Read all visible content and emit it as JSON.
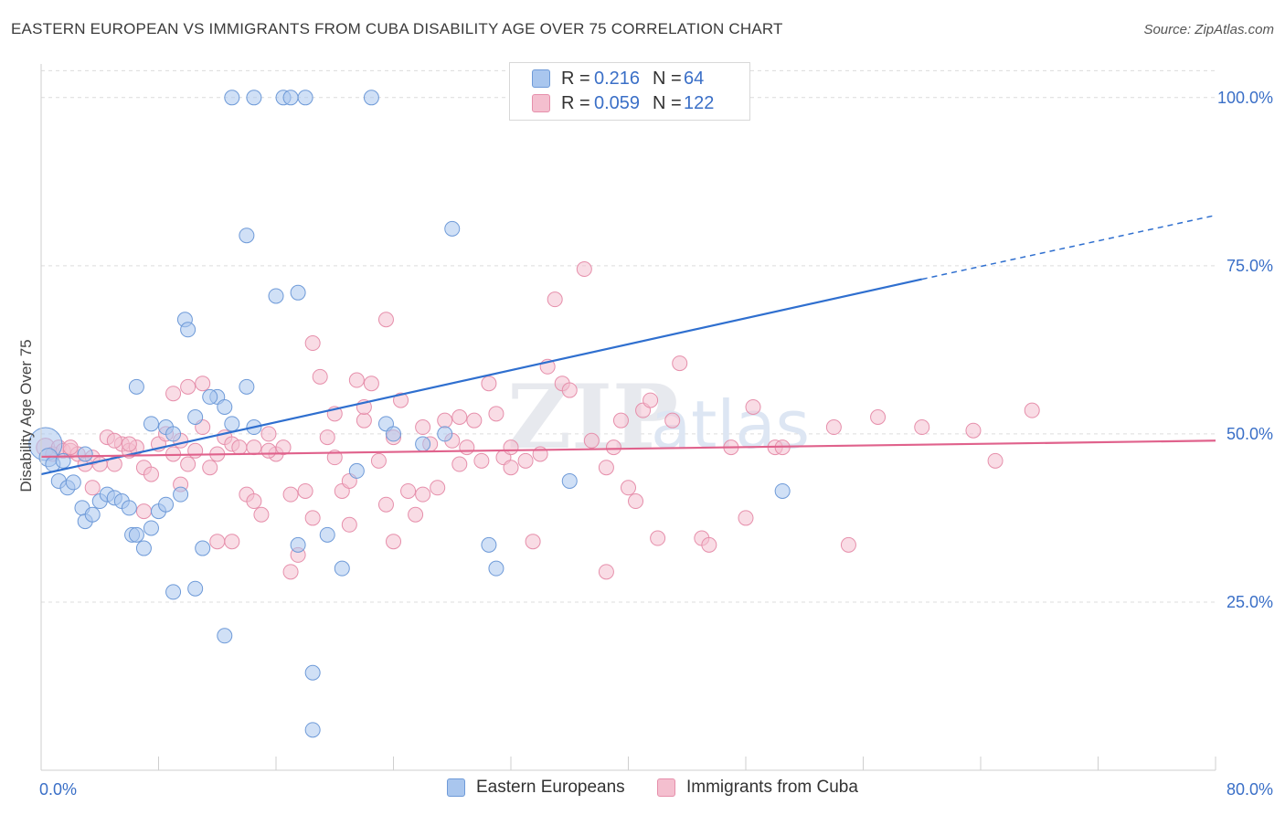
{
  "title": "EASTERN EUROPEAN VS IMMIGRANTS FROM CUBA DISABILITY AGE OVER 75 CORRELATION CHART",
  "source": "Source: ZipAtlas.com",
  "watermark": {
    "zip": "ZIP",
    "atlas": "atlas"
  },
  "colors": {
    "blue_fill": "#a9c6ee",
    "blue_stroke": "#6e9ad8",
    "blue_line": "#2f6fcf",
    "pink_fill": "#f4bfcf",
    "pink_stroke": "#e68fab",
    "pink_line": "#e0628c",
    "axis_label": "#3a6fc7",
    "grid": "#dcdcdc"
  },
  "legend": {
    "rows": [
      {
        "r_label": "R =",
        "r_value": "0.216",
        "n_label": "N =",
        "n_value": "64"
      },
      {
        "r_label": "R =",
        "r_value": "0.059",
        "n_label": "N =",
        "n_value": "122"
      }
    ]
  },
  "bottom_legend": [
    "Eastern Europeans",
    "Immigrants from Cuba"
  ],
  "chart_data": {
    "type": "scatter",
    "title": "EASTERN EUROPEAN VS IMMIGRANTS FROM CUBA DISABILITY AGE OVER 75 CORRELATION CHART",
    "xlabel": "",
    "ylabel": "Disability Age Over 75",
    "xlim": [
      0,
      80
    ],
    "ylim": [
      0,
      105
    ],
    "x_tick_labels": [
      "0.0%",
      "80.0%"
    ],
    "y_ticks": [
      25,
      50,
      75,
      100
    ],
    "y_tick_labels": [
      "25.0%",
      "50.0%",
      "75.0%",
      "100.0%"
    ],
    "grid": true,
    "series": [
      {
        "name": "Eastern Europeans",
        "color": "blue",
        "R": 0.216,
        "N": 64,
        "trend": {
          "x0": 0,
          "y0": 44.0,
          "x1": 60,
          "y1": 73.0,
          "dash_x1": 80,
          "dash_y1": 82.5
        },
        "points": [
          [
            0.3,
            48.5,
            18
          ],
          [
            0.5,
            46.5,
            10
          ],
          [
            0.8,
            45.5,
            8
          ],
          [
            1.2,
            43.0,
            8
          ],
          [
            1.8,
            42.0,
            8
          ],
          [
            2.2,
            42.8,
            8
          ],
          [
            2.8,
            39.0,
            8
          ],
          [
            3.0,
            37.0,
            8
          ],
          [
            3.5,
            38.0,
            8
          ],
          [
            4.0,
            40.0,
            8
          ],
          [
            4.5,
            41.0,
            8
          ],
          [
            5.0,
            40.5,
            8
          ],
          [
            5.5,
            40.0,
            8
          ],
          [
            6.0,
            39.0,
            8
          ],
          [
            6.2,
            35.0,
            8
          ],
          [
            6.5,
            35.0,
            8
          ],
          [
            7.0,
            33.0,
            8
          ],
          [
            7.5,
            36.0,
            8
          ],
          [
            8.0,
            38.5,
            8
          ],
          [
            8.5,
            39.5,
            8
          ],
          [
            9.5,
            41.0,
            8
          ],
          [
            7.5,
            51.5,
            8
          ],
          [
            8.5,
            51.0,
            8
          ],
          [
            9.0,
            50.0,
            8
          ],
          [
            6.5,
            57.0,
            8
          ],
          [
            10.5,
            52.5,
            8
          ],
          [
            12.0,
            55.5,
            8
          ],
          [
            12.5,
            54.0,
            8
          ],
          [
            13.0,
            51.5,
            8
          ],
          [
            14.0,
            57.0,
            8
          ],
          [
            14.5,
            51.0,
            8
          ],
          [
            9.8,
            67.0,
            8
          ],
          [
            10.0,
            65.5,
            8
          ],
          [
            11.5,
            55.5,
            8
          ],
          [
            16.0,
            70.5,
            8
          ],
          [
            17.5,
            71.0,
            8
          ],
          [
            14.0,
            79.5,
            8
          ],
          [
            13.0,
            100.0,
            8
          ],
          [
            14.5,
            100.0,
            8
          ],
          [
            16.5,
            100.0,
            8
          ],
          [
            17.0,
            100.0,
            8
          ],
          [
            18.0,
            100.0,
            8
          ],
          [
            22.5,
            100.0,
            8
          ],
          [
            28.0,
            80.5,
            8
          ],
          [
            11.0,
            33.0,
            8
          ],
          [
            10.5,
            27.0,
            8
          ],
          [
            9.0,
            26.5,
            8
          ],
          [
            12.5,
            20.0,
            8
          ],
          [
            17.5,
            33.5,
            8
          ],
          [
            19.5,
            35.0,
            8
          ],
          [
            20.5,
            30.0,
            8
          ],
          [
            21.5,
            44.5,
            8
          ],
          [
            23.5,
            51.5,
            8
          ],
          [
            27.5,
            50.0,
            8
          ],
          [
            30.5,
            33.5,
            8
          ],
          [
            31.0,
            30.0,
            8
          ],
          [
            36.0,
            43.0,
            8
          ],
          [
            50.5,
            41.5,
            8
          ],
          [
            18.5,
            14.5,
            8
          ],
          [
            18.5,
            6.0,
            8
          ],
          [
            24.0,
            50.0,
            8
          ],
          [
            26.0,
            48.5,
            8
          ],
          [
            3.0,
            47.0,
            8
          ],
          [
            1.5,
            46.0,
            8
          ]
        ]
      },
      {
        "name": "Immigrants from Cuba",
        "color": "pink",
        "R": 0.059,
        "N": 122,
        "trend": {
          "x0": 0,
          "y0": 46.6,
          "x1": 80,
          "y1": 49.0
        },
        "points": [
          [
            0.3,
            48.0,
            10
          ],
          [
            0.8,
            47.0,
            8
          ],
          [
            1.2,
            48.0,
            8
          ],
          [
            1.5,
            47.5,
            8
          ],
          [
            2.0,
            47.5,
            8
          ],
          [
            2.5,
            47.0,
            8
          ],
          [
            3.0,
            45.5,
            8
          ],
          [
            3.5,
            46.5,
            8
          ],
          [
            4.0,
            45.5,
            8
          ],
          [
            4.5,
            49.5,
            8
          ],
          [
            5.0,
            45.5,
            8
          ],
          [
            5.5,
            48.5,
            8
          ],
          [
            6.0,
            47.5,
            8
          ],
          [
            6.5,
            48.0,
            8
          ],
          [
            7.0,
            45.0,
            8
          ],
          [
            7.5,
            44.0,
            8
          ],
          [
            8.0,
            48.5,
            8
          ],
          [
            8.5,
            50.0,
            8
          ],
          [
            9.0,
            47.0,
            8
          ],
          [
            9.5,
            49.0,
            8
          ],
          [
            10.0,
            45.5,
            8
          ],
          [
            10.5,
            47.5,
            8
          ],
          [
            11.0,
            51.0,
            8
          ],
          [
            11.5,
            45.0,
            8
          ],
          [
            12.0,
            47.0,
            8
          ],
          [
            12.5,
            49.5,
            8
          ],
          [
            13.0,
            48.5,
            8
          ],
          [
            13.5,
            48.0,
            8
          ],
          [
            14.0,
            41.0,
            8
          ],
          [
            14.5,
            40.0,
            8
          ],
          [
            15.0,
            38.0,
            8
          ],
          [
            15.5,
            50.0,
            8
          ],
          [
            16.0,
            47.0,
            8
          ],
          [
            16.5,
            48.0,
            8
          ],
          [
            17.0,
            41.0,
            8
          ],
          [
            17.5,
            32.0,
            8
          ],
          [
            18.0,
            41.5,
            8
          ],
          [
            18.5,
            63.5,
            8
          ],
          [
            19.0,
            58.5,
            8
          ],
          [
            19.5,
            49.5,
            8
          ],
          [
            20.0,
            46.5,
            8
          ],
          [
            20.5,
            41.5,
            8
          ],
          [
            21.0,
            43.0,
            8
          ],
          [
            21.5,
            58.0,
            8
          ],
          [
            22.0,
            52.0,
            8
          ],
          [
            22.5,
            57.5,
            8
          ],
          [
            23.0,
            46.0,
            8
          ],
          [
            23.5,
            39.5,
            8
          ],
          [
            24.0,
            49.5,
            8
          ],
          [
            24.5,
            55.0,
            8
          ],
          [
            25.0,
            41.5,
            8
          ],
          [
            25.5,
            38.0,
            8
          ],
          [
            26.0,
            51.0,
            8
          ],
          [
            26.5,
            48.5,
            8
          ],
          [
            27.0,
            42.0,
            8
          ],
          [
            27.5,
            52.0,
            8
          ],
          [
            28.0,
            49.0,
            8
          ],
          [
            28.5,
            52.5,
            8
          ],
          [
            29.0,
            48.0,
            8
          ],
          [
            29.5,
            52.0,
            8
          ],
          [
            30.0,
            46.0,
            8
          ],
          [
            30.5,
            57.5,
            8
          ],
          [
            31.0,
            53.0,
            8
          ],
          [
            31.5,
            46.5,
            8
          ],
          [
            32.0,
            48.0,
            8
          ],
          [
            33.0,
            46.0,
            8
          ],
          [
            33.5,
            34.0,
            8
          ],
          [
            34.0,
            47.0,
            8
          ],
          [
            34.5,
            60.0,
            8
          ],
          [
            35.0,
            70.0,
            8
          ],
          [
            35.5,
            57.5,
            8
          ],
          [
            37.0,
            74.5,
            8
          ],
          [
            37.5,
            49.0,
            8
          ],
          [
            38.5,
            45.0,
            8
          ],
          [
            39.0,
            48.0,
            8
          ],
          [
            40.0,
            42.0,
            8
          ],
          [
            40.5,
            40.0,
            8
          ],
          [
            41.0,
            53.5,
            8
          ],
          [
            42.0,
            34.5,
            8
          ],
          [
            43.0,
            52.0,
            8
          ],
          [
            43.5,
            60.5,
            8
          ],
          [
            45.0,
            34.5,
            8
          ],
          [
            45.5,
            33.5,
            8
          ],
          [
            47.0,
            48.0,
            8
          ],
          [
            48.0,
            37.5,
            8
          ],
          [
            48.5,
            54.0,
            8
          ],
          [
            50.0,
            48.0,
            8
          ],
          [
            50.5,
            48.0,
            8
          ],
          [
            54.0,
            51.0,
            8
          ],
          [
            55.0,
            33.5,
            8
          ],
          [
            57.0,
            52.5,
            8
          ],
          [
            60.0,
            51.0,
            8
          ],
          [
            63.5,
            50.5,
            8
          ],
          [
            65.0,
            46.0,
            8
          ],
          [
            67.5,
            53.5,
            8
          ],
          [
            10.0,
            57.0,
            8
          ],
          [
            11.0,
            57.5,
            8
          ],
          [
            9.0,
            56.0,
            8
          ],
          [
            6.0,
            48.5,
            8
          ],
          [
            5.0,
            49.0,
            8
          ],
          [
            7.0,
            38.5,
            8
          ],
          [
            9.5,
            42.5,
            8
          ],
          [
            12.0,
            34.0,
            8
          ],
          [
            13.0,
            34.0,
            8
          ],
          [
            17.0,
            29.5,
            8
          ],
          [
            18.5,
            37.5,
            8
          ],
          [
            21.0,
            36.5,
            8
          ],
          [
            24.0,
            34.0,
            8
          ],
          [
            26.0,
            41.0,
            8
          ],
          [
            23.5,
            67.0,
            8
          ],
          [
            22.0,
            54.0,
            8
          ],
          [
            20.0,
            53.0,
            8
          ],
          [
            28.5,
            45.5,
            8
          ],
          [
            32.0,
            45.0,
            8
          ],
          [
            36.0,
            56.5,
            8
          ],
          [
            38.5,
            29.5,
            8
          ],
          [
            39.5,
            52.0,
            8
          ],
          [
            41.5,
            55.0,
            8
          ],
          [
            2.0,
            48.0,
            8
          ],
          [
            3.5,
            42.0,
            8
          ],
          [
            14.5,
            48.0,
            8
          ],
          [
            15.5,
            47.5,
            8
          ]
        ]
      }
    ]
  }
}
